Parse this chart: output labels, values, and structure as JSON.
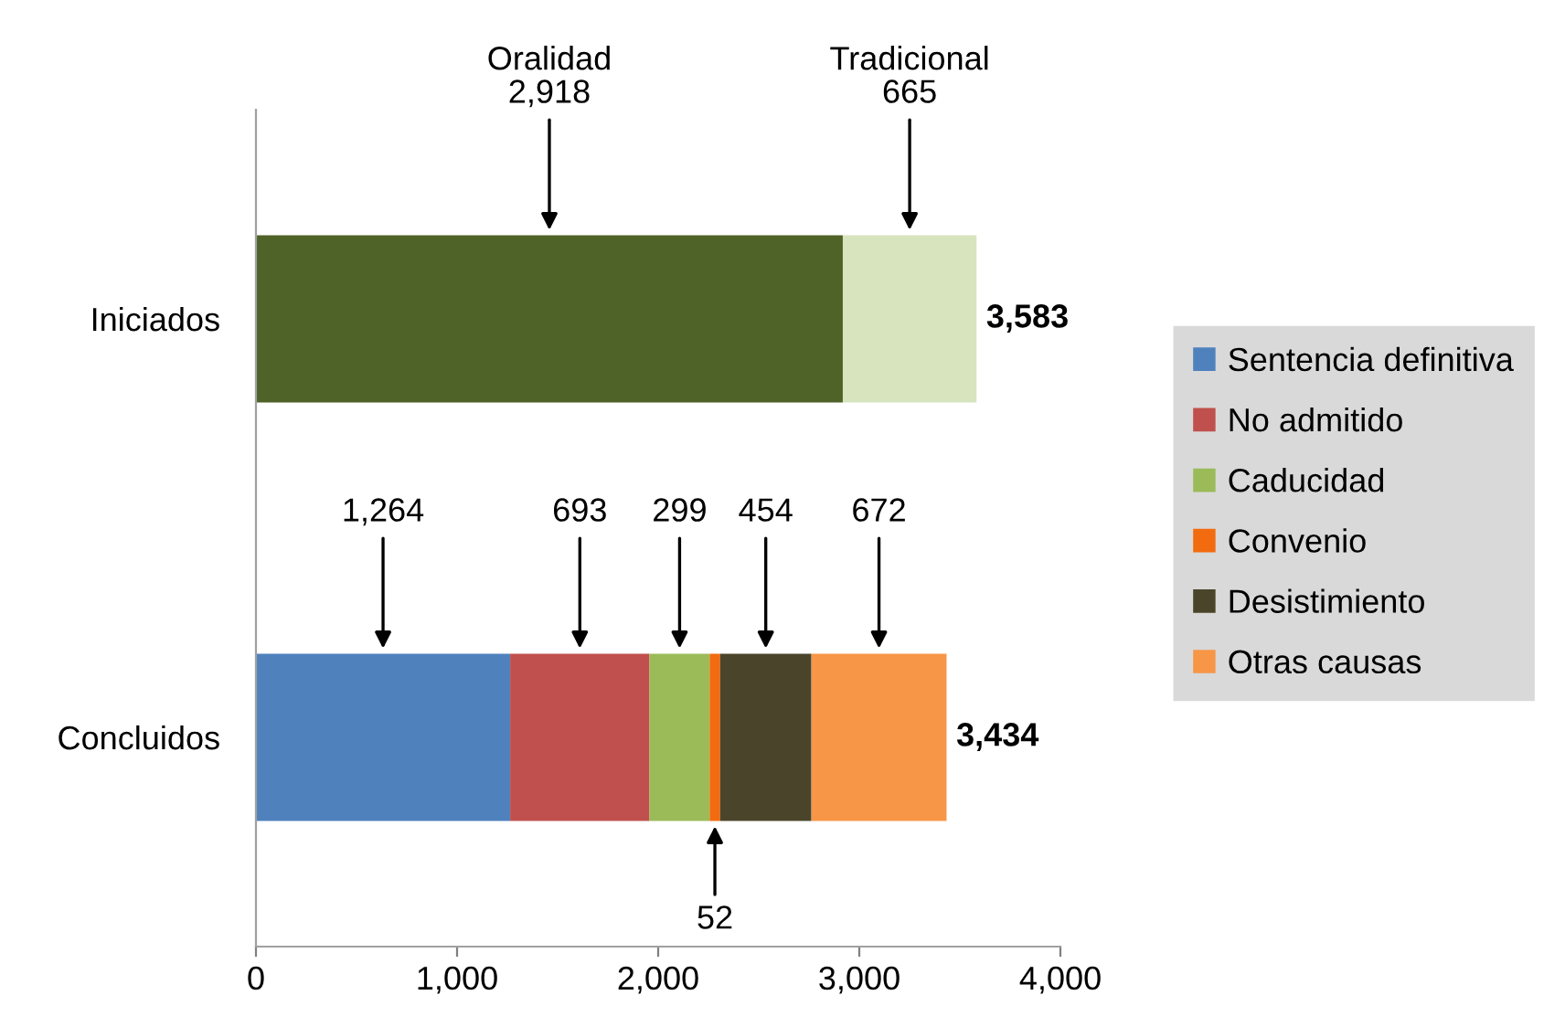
{
  "chart_data": {
    "type": "bar",
    "orientation": "horizontal",
    "stacked": true,
    "categories": [
      "Iniciados",
      "Concluidos"
    ],
    "series": [
      {
        "color": "#4f6228",
        "values": [
          2918,
          null
        ],
        "value_labels": [
          "Oralidad\n2,918",
          null
        ]
      },
      {
        "color": "#d7e4bd",
        "values": [
          665,
          null
        ],
        "value_labels": [
          "Tradicional\n665",
          null
        ]
      },
      {
        "name": "Sentencia definitiva",
        "color": "#4f81bd",
        "values": [
          null,
          1264
        ],
        "value_labels": [
          null,
          "1,264"
        ]
      },
      {
        "name": "No admitido",
        "color": "#c0504d",
        "values": [
          null,
          693
        ],
        "value_labels": [
          null,
          "693"
        ]
      },
      {
        "name": "Caducidad",
        "color": "#9bbb59",
        "values": [
          null,
          299
        ],
        "value_labels": [
          null,
          "299"
        ]
      },
      {
        "name": "Convenio",
        "color": "#f26b0f",
        "values": [
          null,
          52
        ],
        "value_labels": [
          null,
          "52"
        ]
      },
      {
        "name": "Desistimiento",
        "color": "#4a452a",
        "values": [
          null,
          454
        ],
        "value_labels": [
          null,
          "454"
        ]
      },
      {
        "name": "Otras causas",
        "color": "#f79646",
        "values": [
          null,
          672
        ],
        "value_labels": [
          null,
          "672"
        ]
      }
    ],
    "totals": [
      "3,583",
      "3,434"
    ],
    "xlim": [
      0,
      4000
    ],
    "xticks": [
      0,
      {
        "value": 1000,
        "label": "1,000"
      },
      {
        "value": 2000,
        "label": "2,000"
      },
      {
        "value": 3000,
        "label": "3,000"
      },
      {
        "value": 4000,
        "label": "4,000"
      }
    ],
    "grid": false,
    "legend": "right"
  }
}
